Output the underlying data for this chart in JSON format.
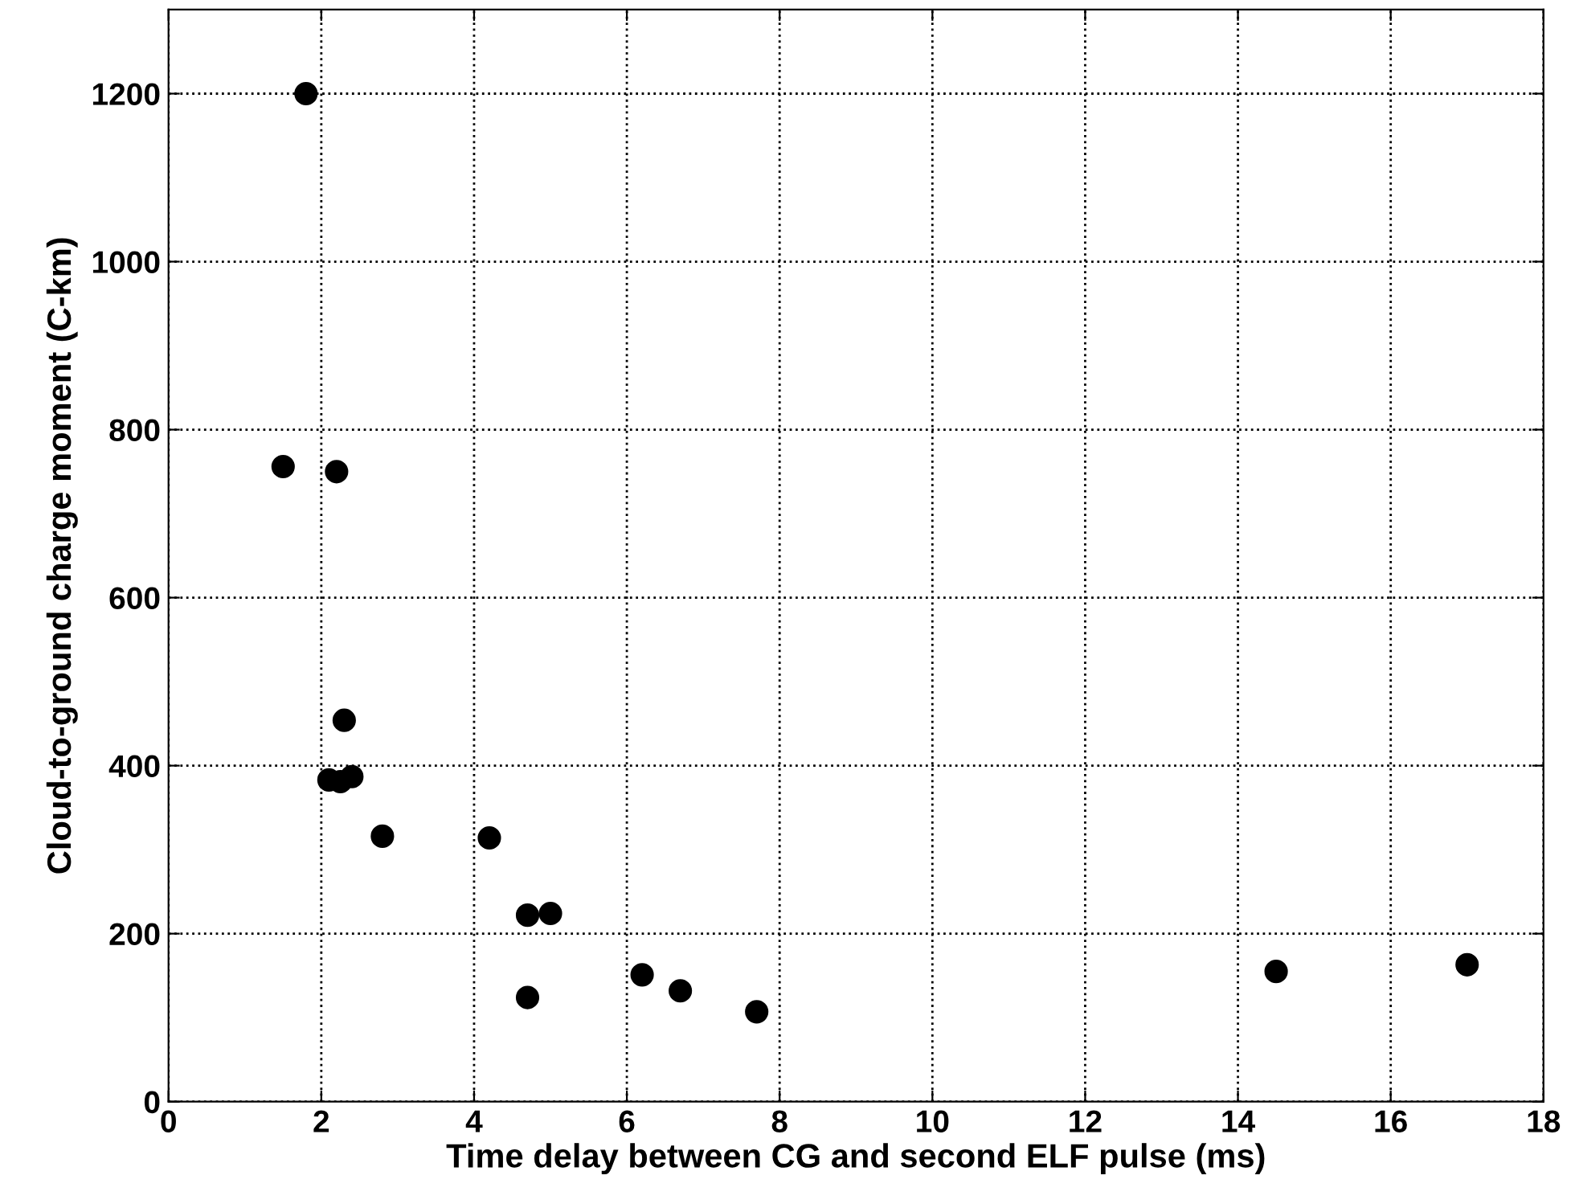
{
  "chart_data": {
    "type": "scatter",
    "xlabel": "Time delay between CG and second ELF pulse (ms)",
    "ylabel": "Cloud-to-ground charge moment (C-km)",
    "x": [
      1.5,
      1.8,
      2.2,
      2.1,
      2.3,
      2.25,
      2.4,
      2.8,
      4.2,
      4.7,
      5.0,
      4.7,
      6.2,
      6.7,
      7.7,
      14.5,
      17.0
    ],
    "series": [
      {
        "color": "#000000",
        "values": [
          756,
          1200,
          750,
          383,
          454,
          381,
          387,
          316,
          314,
          222,
          224,
          124,
          151,
          132,
          107,
          155,
          163
        ]
      }
    ],
    "xlim": [
      0,
      18
    ],
    "xticks": [
      0,
      2,
      4,
      6,
      8,
      10,
      12,
      14,
      16,
      18
    ],
    "ylim": [
      0,
      1300
    ],
    "yticks": [
      0,
      200,
      400,
      600,
      800,
      1000,
      1200
    ],
    "grid": true,
    "marker": "circle"
  }
}
